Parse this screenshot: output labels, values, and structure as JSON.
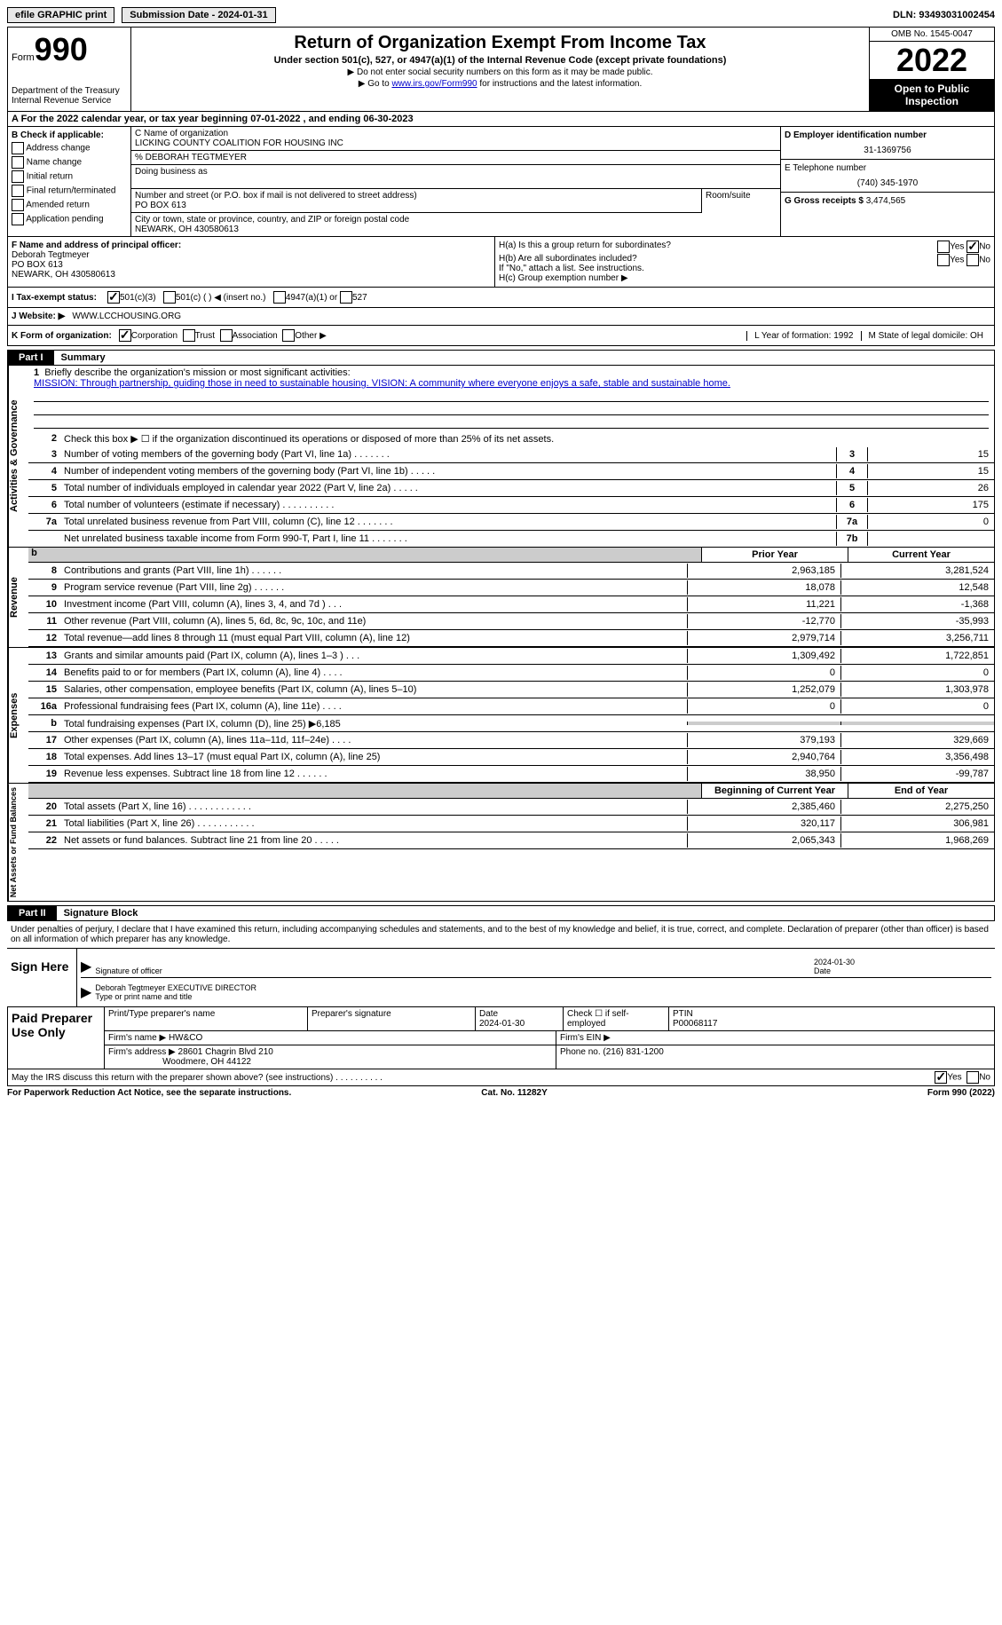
{
  "top": {
    "efile": "efile GRAPHIC print",
    "sub_date_label": "Submission Date - 2024-01-31",
    "dln": "DLN: 93493031002454"
  },
  "header": {
    "form_label": "Form",
    "form_num": "990",
    "dept": "Department of the Treasury Internal Revenue Service",
    "title": "Return of Organization Exempt From Income Tax",
    "sub": "Under section 501(c), 527, or 4947(a)(1) of the Internal Revenue Code (except private foundations)",
    "note1": "▶ Do not enter social security numbers on this form as it may be made public.",
    "note2_pre": "▶ Go to ",
    "note2_link": "www.irs.gov/Form990",
    "note2_post": " for instructions and the latest information.",
    "omb": "OMB No. 1545-0047",
    "year": "2022",
    "inspection": "Open to Public Inspection"
  },
  "cal_year": "A For the 2022 calendar year, or tax year beginning 07-01-2022    , and ending 06-30-2023",
  "b": {
    "label": "B Check if applicable:",
    "items": [
      "Address change",
      "Name change",
      "Initial return",
      "Final return/terminated",
      "Amended return",
      "Application pending"
    ]
  },
  "c": {
    "name_label": "C Name of organization",
    "name": "LICKING COUNTY COALITION FOR HOUSING INC",
    "care_of": "% DEBORAH TEGTMEYER",
    "dba_label": "Doing business as",
    "addr_label": "Number and street (or P.O. box if mail is not delivered to street address)",
    "addr": "PO BOX 613",
    "room_label": "Room/suite",
    "city_label": "City or town, state or province, country, and ZIP or foreign postal code",
    "city": "NEWARK, OH  430580613"
  },
  "d": {
    "ein_label": "D Employer identification number",
    "ein": "31-1369756",
    "phone_label": "E Telephone number",
    "phone": "(740) 345-1970",
    "gross_label": "G Gross receipts $",
    "gross": "3,474,565"
  },
  "f": {
    "label": "F Name and address of principal officer:",
    "name": "Deborah Tegtmeyer",
    "addr1": "PO BOX 613",
    "addr2": "NEWARK, OH  430580613"
  },
  "h": {
    "a": "H(a)  Is this a group return for subordinates?",
    "b": "H(b)  Are all subordinates included?",
    "b_note": "If \"No,\" attach a list. See instructions.",
    "c": "H(c)  Group exemption number ▶"
  },
  "i": {
    "label": "I   Tax-exempt status:",
    "opt1": "501(c)(3)",
    "opt2": "501(c) (  ) ◀ (insert no.)",
    "opt3": "4947(a)(1) or",
    "opt4": "527"
  },
  "j": {
    "label": "J   Website: ▶",
    "val": "WWW.LCCHOUSING.ORG"
  },
  "k": {
    "label": "K Form of organization:",
    "opts": [
      "Corporation",
      "Trust",
      "Association",
      "Other ▶"
    ],
    "l": "L Year of formation: 1992",
    "m": "M State of legal domicile: OH"
  },
  "part1": {
    "num": "Part I",
    "title": "Summary"
  },
  "activities": {
    "vlabel": "Activities & Governance",
    "l1": "Briefly describe the organization's mission or most significant activities:",
    "mission": "MISSION: Through partnership, guiding those in need to sustainable housing. VISION: A community where everyone enjoys a safe, stable and sustainable home.",
    "l2": "Check this box ▶ ☐  if the organization discontinued its operations or disposed of more than 25% of its net assets.",
    "rows": [
      {
        "n": "3",
        "d": "Number of voting members of the governing body (Part VI, line 1a)   .     .     .     .     .     .     .",
        "b": "3",
        "v": "15"
      },
      {
        "n": "4",
        "d": "Number of independent voting members of the governing body (Part VI, line 1b)  .     .     .     .     .",
        "b": "4",
        "v": "15"
      },
      {
        "n": "5",
        "d": "Total number of individuals employed in calendar year 2022 (Part V, line 2a)   .     .     .     .     .",
        "b": "5",
        "v": "26"
      },
      {
        "n": "6",
        "d": "Total number of volunteers (estimate if necessary)     .     .     .     .     .     .     .     .     .     .",
        "b": "6",
        "v": "175"
      },
      {
        "n": "7a",
        "d": "Total unrelated business revenue from Part VIII, column (C), line 12   .     .     .     .     .     .     .",
        "b": "7a",
        "v": "0"
      },
      {
        "n": "",
        "d": "Net unrelated business taxable income from Form 990-T, Part I, line 11  .     .     .     .     .     .     .",
        "b": "7b",
        "v": ""
      }
    ]
  },
  "revenue": {
    "vlabel": "Revenue",
    "hdr1": "Prior Year",
    "hdr2": "Current Year",
    "rows": [
      {
        "n": "8",
        "d": "Contributions and grants (Part VIII, line 1h)   .     .     .     .     .     .",
        "c1": "2,963,185",
        "c2": "3,281,524"
      },
      {
        "n": "9",
        "d": "Program service revenue (Part VIII, line 2g)   .     .     .     .     .     .",
        "c1": "18,078",
        "c2": "12,548"
      },
      {
        "n": "10",
        "d": "Investment income (Part VIII, column (A), lines 3, 4, and 7d )   .     .     .",
        "c1": "11,221",
        "c2": "-1,368"
      },
      {
        "n": "11",
        "d": "Other revenue (Part VIII, column (A), lines 5, 6d, 8c, 9c, 10c, and 11e)",
        "c1": "-12,770",
        "c2": "-35,993"
      },
      {
        "n": "12",
        "d": "Total revenue—add lines 8 through 11 (must equal Part VIII, column (A), line 12)",
        "c1": "2,979,714",
        "c2": "3,256,711"
      }
    ]
  },
  "expenses": {
    "vlabel": "Expenses",
    "rows": [
      {
        "n": "13",
        "d": "Grants and similar amounts paid (Part IX, column (A), lines 1–3 )  .     .     .",
        "c1": "1,309,492",
        "c2": "1,722,851"
      },
      {
        "n": "14",
        "d": "Benefits paid to or for members (Part IX, column (A), line 4)   .     .     .     .",
        "c1": "0",
        "c2": "0"
      },
      {
        "n": "15",
        "d": "Salaries, other compensation, employee benefits (Part IX, column (A), lines 5–10)",
        "c1": "1,252,079",
        "c2": "1,303,978"
      },
      {
        "n": "16a",
        "d": "Professional fundraising fees (Part IX, column (A), line 11e)   .     .     .     .",
        "c1": "0",
        "c2": "0"
      },
      {
        "n": "b",
        "d": "Total fundraising expenses (Part IX, column (D), line 25) ▶6,185",
        "c1": "",
        "c2": "",
        "shade": true
      },
      {
        "n": "17",
        "d": "Other expenses (Part IX, column (A), lines 11a–11d, 11f–24e)   .     .     .     .",
        "c1": "379,193",
        "c2": "329,669"
      },
      {
        "n": "18",
        "d": "Total expenses. Add lines 13–17 (must equal Part IX, column (A), line 25)",
        "c1": "2,940,764",
        "c2": "3,356,498"
      },
      {
        "n": "19",
        "d": "Revenue less expenses. Subtract line 18 from line 12   .     .     .     .     .     .",
        "c1": "38,950",
        "c2": "-99,787"
      }
    ]
  },
  "netassets": {
    "vlabel": "Net Assets or Fund Balances",
    "hdr1": "Beginning of Current Year",
    "hdr2": "End of Year",
    "rows": [
      {
        "n": "20",
        "d": "Total assets (Part X, line 16)  .     .     .     .     .     .     .     .     .     .     .     .",
        "c1": "2,385,460",
        "c2": "2,275,250"
      },
      {
        "n": "21",
        "d": "Total liabilities (Part X, line 26)   .     .     .     .     .     .     .     .     .     .     .",
        "c1": "320,117",
        "c2": "306,981"
      },
      {
        "n": "22",
        "d": "Net assets or fund balances. Subtract line 21 from line 20   .     .     .     .     .",
        "c1": "2,065,343",
        "c2": "1,968,269"
      }
    ]
  },
  "part2": {
    "num": "Part II",
    "title": "Signature Block"
  },
  "penalty": "Under penalties of perjury, I declare that I have examined this return, including accompanying schedules and statements, and to the best of my knowledge and belief, it is true, correct, and complete. Declaration of preparer (other than officer) is based on all information of which preparer has any knowledge.",
  "sign": {
    "label": "Sign Here",
    "sig_label": "Signature of officer",
    "date": "2024-01-30",
    "date_label": "Date",
    "name": "Deborah Tegtmeyer EXECUTIVE DIRECTOR",
    "name_label": "Type or print name and title"
  },
  "prep": {
    "label": "Paid Preparer Use Only",
    "h1": "Print/Type preparer's name",
    "h2": "Preparer's signature",
    "h3_label": "Date",
    "h3": "2024-01-30",
    "h4": "Check ☐ if self-employed",
    "h5_label": "PTIN",
    "h5": "P00068117",
    "firm_label": "Firm's name     ▶",
    "firm": "HW&CO",
    "ein_label": "Firm's EIN ▶",
    "addr_label": "Firm's address ▶",
    "addr1": "28601 Chagrin Blvd 210",
    "addr2": "Woodmere, OH  44122",
    "phone_label": "Phone no.",
    "phone": "(216) 831-1200"
  },
  "discuss": "May the IRS discuss this return with the preparer shown above? (see instructions)   .     .     .     .     .     .     .     .     .     .",
  "footer": {
    "left": "For Paperwork Reduction Act Notice, see the separate instructions.",
    "mid": "Cat. No. 11282Y",
    "right": "Form 990 (2022)"
  }
}
